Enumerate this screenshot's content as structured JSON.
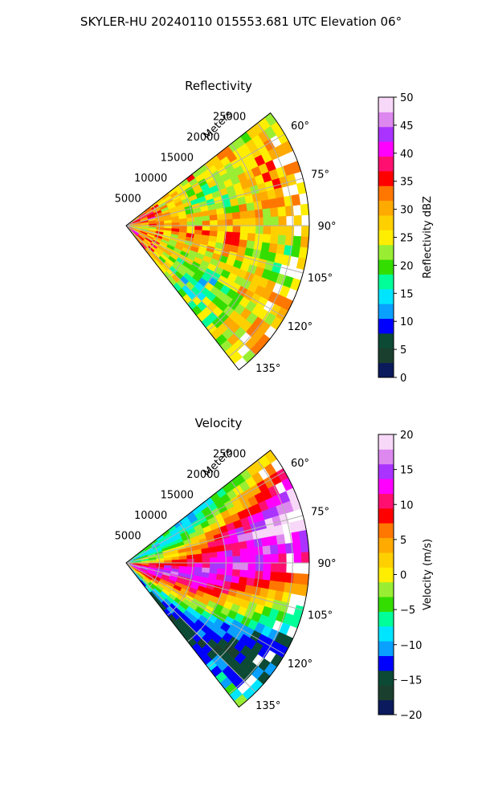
{
  "figure": {
    "title": "SKYLER-HU  20240110  015553.681 UTC Elevation 06°"
  },
  "chart_data": [
    {
      "type": "heatmap",
      "title": "Reflectivity",
      "range_label": "Meters",
      "range_ticks": [
        5000,
        10000,
        15000,
        20000,
        25000
      ],
      "range_tick_labels": [
        "5000",
        "10000",
        "15000",
        "20000",
        "25000"
      ],
      "azimuth_ticks": [
        60,
        75,
        90,
        105,
        120,
        135
      ],
      "azimuth_tick_labels": [
        "60°",
        "75°",
        "90°",
        "105°",
        "120°",
        "135°"
      ],
      "azimuth_range": [
        52,
        142
      ],
      "range_max": 27500,
      "colorbar": {
        "label": "Reflectivity dBZ",
        "min": 0,
        "max": 50,
        "ticks": [
          0,
          5,
          10,
          15,
          20,
          25,
          30,
          35,
          40,
          45,
          50
        ],
        "tick_labels": [
          "0",
          "5",
          "10",
          "15",
          "20",
          "25",
          "30",
          "35",
          "40",
          "45",
          "50"
        ],
        "colors": [
          "#0a1a5c",
          "#1a3f2e",
          "#0c4a35",
          "#0000ff",
          "#0aa0ff",
          "#00e5ff",
          "#00ff99",
          "#33dd00",
          "#99ee33",
          "#ffee00",
          "#ffd000",
          "#ffaa00",
          "#ff7700",
          "#ff0000",
          "#ff1070",
          "#ff00ff",
          "#aa33ff",
          "#dd88ee",
          "#f8d8f8"
        ]
      },
      "grid": true
    },
    {
      "type": "heatmap",
      "title": "Velocity",
      "range_label": "Meters",
      "range_ticks": [
        5000,
        10000,
        15000,
        20000,
        25000
      ],
      "range_tick_labels": [
        "5000",
        "10000",
        "15000",
        "20000",
        "25000"
      ],
      "azimuth_ticks": [
        60,
        75,
        90,
        105,
        120,
        135
      ],
      "azimuth_tick_labels": [
        "60°",
        "75°",
        "90°",
        "105°",
        "120°",
        "135°"
      ],
      "azimuth_range": [
        52,
        142
      ],
      "range_max": 27500,
      "colorbar": {
        "label": "Velocity (m/s)",
        "min": -20,
        "max": 20,
        "ticks": [
          -20,
          -15,
          -10,
          -5,
          0,
          5,
          10,
          15,
          20
        ],
        "tick_labels": [
          "−20",
          "−15",
          "−10",
          "−5",
          "0",
          "5",
          "10",
          "15",
          "20"
        ],
        "colors": [
          "#0a1a5c",
          "#1a3f2e",
          "#0c4a35",
          "#0000ff",
          "#0aa0ff",
          "#00e5ff",
          "#00ff99",
          "#33dd00",
          "#99ee33",
          "#ffee00",
          "#ffd000",
          "#ffaa00",
          "#ff7700",
          "#ff0000",
          "#ff1070",
          "#ff00ff",
          "#aa33ff",
          "#dd88ee",
          "#f8d8f8"
        ]
      },
      "grid": true
    }
  ]
}
